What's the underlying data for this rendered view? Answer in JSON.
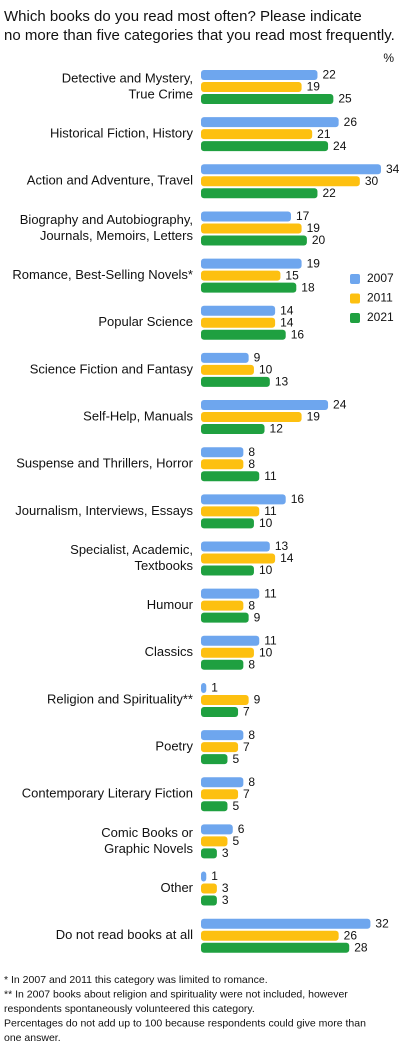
{
  "chart_data": {
    "type": "bar",
    "orientation": "horizontal",
    "title": [
      "Which books do you read most often? Please indicate",
      "no more than five categories that you read most frequently."
    ],
    "unit": "%",
    "categories": [
      [
        "Detective and Mystery,",
        "True Crime"
      ],
      [
        "Historical Fiction, History"
      ],
      [
        "Action and Adventure, Travel"
      ],
      [
        "Biography and Autobiography,",
        "Journals, Memoirs, Letters"
      ],
      [
        "Romance, Best-Selling Novels*"
      ],
      [
        "Popular Science"
      ],
      [
        "Science Fiction and Fantasy"
      ],
      [
        "Self-Help, Manuals"
      ],
      [
        "Suspense and Thrillers, Horror"
      ],
      [
        "Journalism, Interviews, Essays"
      ],
      [
        "Specialist, Academic,",
        "Textbooks"
      ],
      [
        "Humour"
      ],
      [
        "Classics"
      ],
      [
        "Religion and Spirituality**"
      ],
      [
        "Poetry"
      ],
      [
        "Contemporary Literary Fiction"
      ],
      [
        "Comic Books or",
        "Graphic Novels"
      ],
      [
        "Other"
      ],
      [
        "Do not read books at all"
      ]
    ],
    "series": [
      {
        "name": "2007",
        "color": "#6ea6ee",
        "values": [
          22,
          26,
          34,
          17,
          19,
          14,
          9,
          24,
          8,
          16,
          13,
          11,
          11,
          1,
          8,
          8,
          6,
          1,
          32
        ]
      },
      {
        "name": "2011",
        "color": "#fdc010",
        "values": [
          19,
          21,
          30,
          19,
          15,
          14,
          10,
          19,
          8,
          11,
          14,
          8,
          10,
          9,
          7,
          7,
          5,
          3,
          26
        ]
      },
      {
        "name": "2021",
        "color": "#1fa040",
        "values": [
          25,
          24,
          22,
          20,
          18,
          16,
          13,
          12,
          11,
          10,
          10,
          9,
          8,
          7,
          5,
          5,
          3,
          3,
          28
        ]
      }
    ],
    "notes": [
      "* In 2007 and 2011 this category was limited to romance.",
      "** In 2007 books about religion and spirituality were not included, however",
      "respondents spontaneously volunteered this category.",
      "Percentages do not add up to 100 because respondents could give more than",
      "one answer."
    ]
  }
}
